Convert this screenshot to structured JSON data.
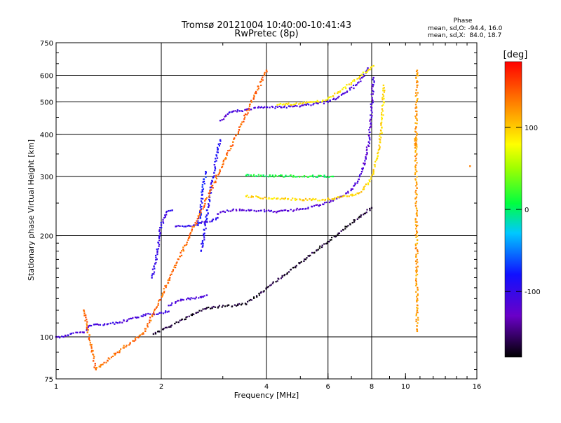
{
  "chart_data": {
    "type": "scatter",
    "title": "Tromsø 20121004 10:40:00-10:41:43",
    "subtitle": "RwPretec (8p)",
    "xlabel": "Frequency [MHz]",
    "ylabel": "Stationary phase Virtual Height [km]",
    "x_scale": "log",
    "y_scale": "log",
    "xlim": [
      1,
      16
    ],
    "ylim": [
      75,
      750
    ],
    "x_ticks": [
      1,
      2,
      4,
      6,
      8,
      10,
      16
    ],
    "x_tick_labels": [
      "1",
      "2",
      "4",
      "6",
      "8",
      "10",
      "16"
    ],
    "y_ticks": [
      75,
      100,
      200,
      300,
      400,
      500,
      600,
      750
    ],
    "y_tick_labels": [
      "75",
      "100",
      "200",
      "300",
      "400",
      "500",
      "600",
      "750"
    ],
    "x_gridlines": [
      2,
      4,
      6,
      8
    ],
    "y_gridlines": [
      100,
      200,
      300,
      400,
      500,
      600
    ],
    "grid": true,
    "phase_box": {
      "heading": "Phase",
      "line_o": "mean, sd,O: -94.4, 16.0",
      "line_x": "mean, sd,X:  84.0, 18.7"
    },
    "colorbar": {
      "label": "[deg]",
      "range": [
        -180,
        180
      ],
      "ticks": [
        100,
        0,
        -100
      ],
      "tick_labels": [
        "100",
        "0",
        "-100"
      ]
    },
    "traces": [
      {
        "phase": -110,
        "points": [
          [
            1.0,
            100
          ],
          [
            1.05,
            100
          ],
          [
            1.1,
            102
          ],
          [
            1.15,
            103
          ],
          [
            1.2,
            103
          ],
          [
            1.25,
            108
          ],
          [
            1.3,
            109
          ],
          [
            1.4,
            109
          ],
          [
            1.5,
            110
          ],
          [
            1.6,
            112
          ],
          [
            1.7,
            114
          ],
          [
            1.8,
            116
          ],
          [
            1.9,
            117
          ],
          [
            2.0,
            118
          ],
          [
            2.1,
            119
          ]
        ]
      },
      {
        "phase": -110,
        "points": [
          [
            2.1,
            124
          ],
          [
            2.2,
            127
          ],
          [
            2.3,
            129
          ],
          [
            2.4,
            130
          ],
          [
            2.5,
            130
          ],
          [
            2.6,
            131
          ],
          [
            2.7,
            133
          ]
        ]
      },
      {
        "phase": -100,
        "points": [
          [
            1.88,
            150
          ],
          [
            1.92,
            165
          ],
          [
            1.95,
            180
          ],
          [
            1.98,
            200
          ],
          [
            2.0,
            215
          ],
          [
            2.05,
            230
          ],
          [
            2.1,
            237
          ],
          [
            2.15,
            238
          ]
        ]
      },
      {
        "phase": -100,
        "points": [
          [
            2.2,
            213
          ],
          [
            2.35,
            213
          ],
          [
            2.5,
            215
          ],
          [
            2.6,
            218
          ],
          [
            2.7,
            220
          ],
          [
            2.8,
            222
          ],
          [
            2.9,
            226
          ]
        ]
      },
      {
        "phase": -115,
        "points": [
          [
            2.9,
            232
          ],
          [
            3.0,
            236
          ],
          [
            3.2,
            238
          ],
          [
            3.4,
            238
          ],
          [
            3.6,
            238
          ],
          [
            3.8,
            237
          ],
          [
            4.0,
            237
          ],
          [
            4.3,
            236
          ],
          [
            4.6,
            237
          ],
          [
            5.0,
            240
          ],
          [
            5.4,
            244
          ],
          [
            5.8,
            248
          ],
          [
            6.2,
            254
          ],
          [
            6.6,
            262
          ],
          [
            7.0,
            275
          ],
          [
            7.3,
            290
          ],
          [
            7.5,
            310
          ],
          [
            7.7,
            340
          ],
          [
            7.85,
            380
          ],
          [
            7.95,
            430
          ],
          [
            8.0,
            480
          ],
          [
            8.05,
            540
          ],
          [
            8.1,
            590
          ]
        ]
      },
      {
        "phase": -90,
        "points": [
          [
            2.6,
            180
          ],
          [
            2.65,
            200
          ],
          [
            2.7,
            230
          ],
          [
            2.75,
            260
          ],
          [
            2.8,
            290
          ],
          [
            2.85,
            320
          ],
          [
            2.9,
            360
          ],
          [
            2.95,
            385
          ]
        ]
      },
      {
        "phase": -80,
        "points": [
          [
            2.55,
            215
          ],
          [
            2.6,
            240
          ],
          [
            2.62,
            265
          ],
          [
            2.65,
            290
          ],
          [
            2.68,
            310
          ]
        ]
      },
      {
        "phase": -110,
        "points": [
          [
            2.95,
            440
          ],
          [
            3.1,
            460
          ],
          [
            3.2,
            468
          ],
          [
            3.35,
            470
          ],
          [
            3.5,
            474
          ],
          [
            3.7,
            480
          ],
          [
            4.0,
            482
          ],
          [
            4.4,
            482
          ],
          [
            4.8,
            485
          ],
          [
            5.2,
            490
          ],
          [
            5.6,
            495
          ],
          [
            6.0,
            500
          ],
          [
            6.4,
            515
          ],
          [
            6.8,
            535
          ],
          [
            7.2,
            560
          ],
          [
            7.5,
            590
          ],
          [
            7.7,
            615
          ],
          [
            7.8,
            630
          ]
        ]
      },
      {
        "phase": 95,
        "points": [
          [
            3.5,
            262
          ],
          [
            3.8,
            260
          ],
          [
            4.0,
            258
          ],
          [
            4.3,
            258
          ],
          [
            4.6,
            257
          ],
          [
            5.0,
            256
          ],
          [
            5.4,
            256
          ],
          [
            5.8,
            256
          ],
          [
            6.2,
            257
          ],
          [
            6.5,
            260
          ],
          [
            6.8,
            262
          ],
          [
            7.2,
            265
          ],
          [
            7.6,
            275
          ],
          [
            7.9,
            290
          ],
          [
            8.1,
            310
          ],
          [
            8.3,
            340
          ],
          [
            8.45,
            380
          ],
          [
            8.55,
            420
          ],
          [
            8.6,
            470
          ],
          [
            8.65,
            520
          ],
          [
            8.65,
            560
          ]
        ]
      },
      {
        "phase": 90,
        "points": [
          [
            4.3,
            490
          ],
          [
            4.6,
            492
          ],
          [
            5.0,
            495
          ],
          [
            5.4,
            500
          ],
          [
            5.8,
            505
          ],
          [
            6.2,
            520
          ],
          [
            6.6,
            545
          ],
          [
            7.0,
            570
          ],
          [
            7.4,
            595
          ],
          [
            7.8,
            620
          ],
          [
            8.1,
            640
          ]
        ]
      },
      {
        "phase": 120,
        "points": [
          [
            10.8,
            600
          ],
          [
            10.8,
            620
          ],
          [
            10.7,
            370
          ],
          [
            10.7,
            390
          ],
          [
            10.8,
            120
          ],
          [
            10.8,
            104
          ]
        ]
      },
      {
        "phase": 130,
        "points": [
          [
            15.3,
            322
          ]
        ]
      },
      {
        "phase": 10,
        "points": [
          [
            3.5,
            302
          ],
          [
            6.2,
            300
          ]
        ]
      },
      {
        "phase": 140,
        "points": [
          [
            1.2,
            120
          ],
          [
            1.3,
            80
          ],
          [
            1.5,
            90
          ],
          [
            1.8,
            104
          ],
          [
            4.0,
            620
          ]
        ]
      },
      {
        "phase": -170,
        "points": [
          [
            1.9,
            102
          ],
          [
            2.7,
            122
          ],
          [
            3.5,
            125
          ],
          [
            8.0,
            242
          ]
        ]
      }
    ]
  }
}
